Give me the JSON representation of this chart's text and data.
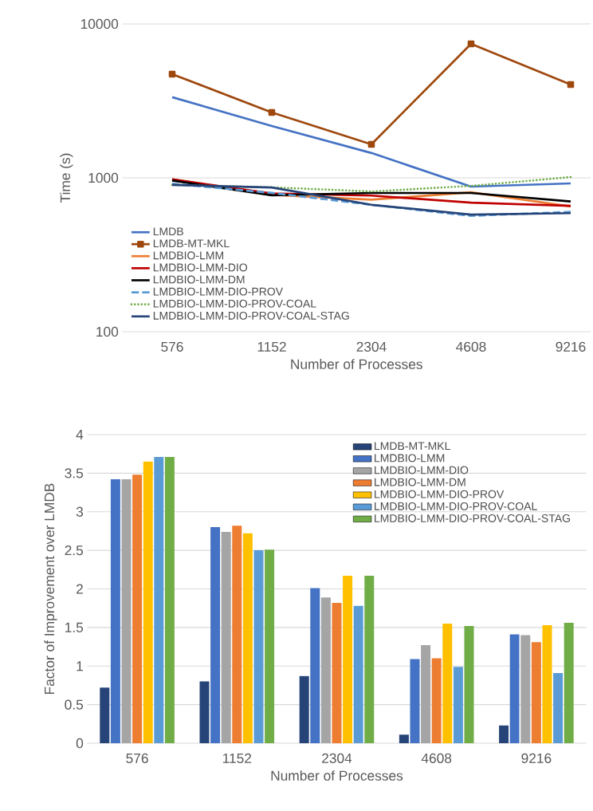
{
  "chart_data": [
    {
      "type": "line",
      "xlabel": "Number of Processes",
      "ylabel": "Time (s)",
      "categories": [
        "576",
        "1152",
        "2304",
        "4608",
        "9216"
      ],
      "log": "y",
      "ylim": [
        100,
        10000
      ],
      "yticks": [
        100,
        1000,
        10000
      ],
      "grid": "y",
      "legend": "bottom left",
      "marker": "none",
      "line_style": "solid",
      "series": [
        {
          "name": "LMDB",
          "color": "#4472c4",
          "values": [
            3340,
            2170,
            1450,
            877,
            920
          ]
        },
        {
          "name": "LMDB-MT-MKL",
          "color": "#9e480e",
          "marker": "square",
          "values": [
            4720,
            2660,
            1650,
            7420,
            4040
          ]
        },
        {
          "name": "LMDBIO-LMM",
          "color": "#ed7d31",
          "values": [
            977,
            775,
            721,
            805,
            652
          ]
        },
        {
          "name": "LMDBIO-LMM-DIO",
          "color": "#c00000",
          "values": [
            977,
            792,
            767,
            690,
            657
          ]
        },
        {
          "name": "LMDBIO-LMM-DM",
          "color": "#000000",
          "values": [
            960,
            770,
            797,
            797,
            702
          ]
        },
        {
          "name": "LMDBIO-LMM-DIO-PROV",
          "color": "#5b9bd5",
          "line_style": "dashed",
          "values": [
            915,
            798,
            668,
            566,
            601
          ]
        },
        {
          "name": "LMDBIO-LMM-DIO-PROV-COAL",
          "color": "#70ad47",
          "line_style": "dotted",
          "values": [
            900,
            868,
            815,
            886,
            1011
          ]
        },
        {
          "name": "LMDBIO-LMM-DIO-PROV-COAL-STAG",
          "color": "#264478",
          "values": [
            900,
            865,
            668,
            577,
            590
          ]
        }
      ]
    },
    {
      "type": "bar",
      "xlabel": "Number of Processes",
      "ylabel": "Factor of Improvement over LMDB",
      "categories": [
        "576",
        "1152",
        "2304",
        "4608",
        "9216"
      ],
      "ylim": [
        0,
        4
      ],
      "yticks": [
        0,
        0.5,
        1,
        1.5,
        2,
        2.5,
        3,
        3.5,
        4
      ],
      "grid": "y",
      "legend": "top right",
      "series": [
        {
          "name": "LMDB-MT-MKL",
          "color": "#264478",
          "values": [
            0.72,
            0.8,
            0.87,
            0.11,
            0.23
          ]
        },
        {
          "name": "LMDBIO-LMM",
          "color": "#4472c4",
          "values": [
            3.42,
            2.8,
            2.01,
            1.09,
            1.41
          ]
        },
        {
          "name": "LMDBIO-LMM-DIO",
          "color": "#a5a5a5",
          "values": [
            3.42,
            2.74,
            1.89,
            1.27,
            1.4
          ]
        },
        {
          "name": "LMDBIO-LMM-DM",
          "color": "#ed7d31",
          "values": [
            3.48,
            2.82,
            1.82,
            1.1,
            1.31
          ]
        },
        {
          "name": "LMDBIO-LMM-DIO-PROV",
          "color": "#ffc000",
          "values": [
            3.65,
            2.72,
            2.17,
            1.55,
            1.53
          ]
        },
        {
          "name": "LMDBIO-LMM-DIO-PROV-COAL",
          "color": "#5b9bd5",
          "values": [
            3.71,
            2.5,
            1.78,
            0.99,
            0.91
          ]
        },
        {
          "name": "LMDBIO-LMM-DIO-PROV-COAL-STAG",
          "color": "#70ad47",
          "values": [
            3.71,
            2.51,
            2.17,
            1.52,
            1.56
          ]
        }
      ]
    }
  ]
}
